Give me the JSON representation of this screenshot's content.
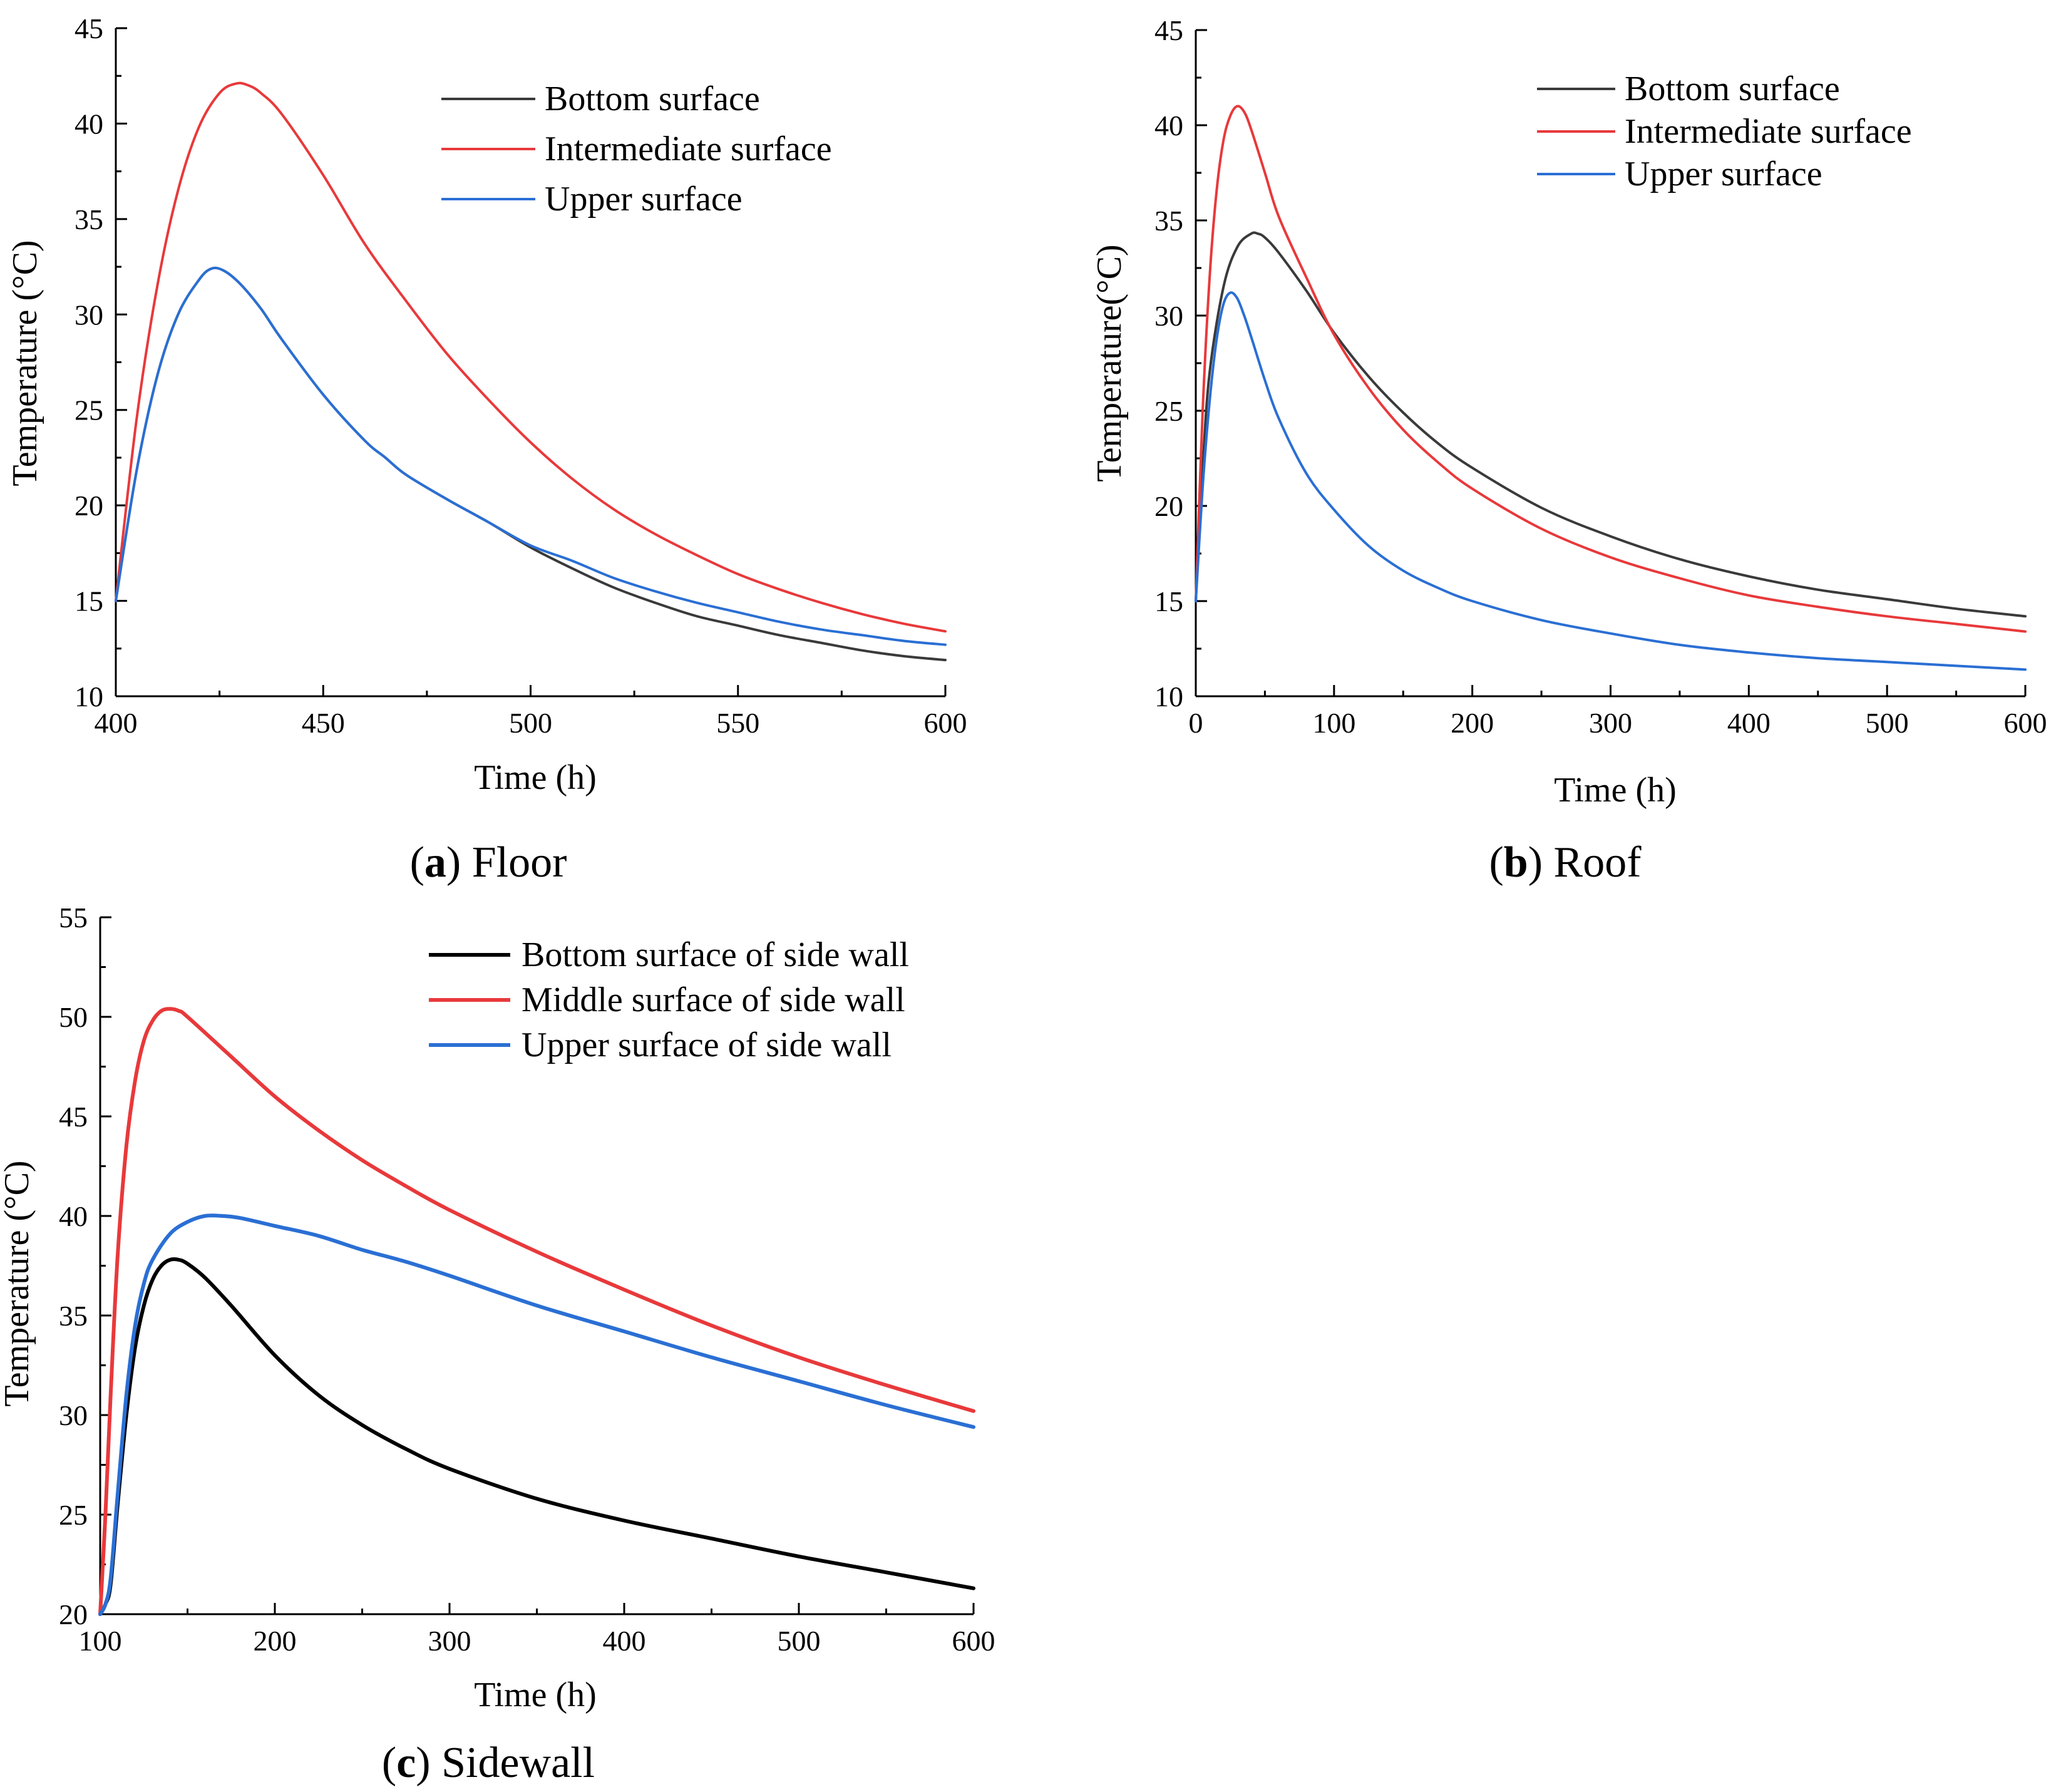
{
  "captions": [
    {
      "letter": "a",
      "text": " Floor"
    },
    {
      "letter": "b",
      "text": " Roof"
    },
    {
      "letter": "c",
      "text": " Sidewall"
    }
  ],
  "colors": {
    "black": "#3a3a3a",
    "black_strong": "#000000",
    "red": "#e8393b",
    "blue": "#2a6fd4"
  },
  "chart_data": [
    {
      "type": "line",
      "title": "",
      "xlabel": "Time (h)",
      "ylabel": "Temperature (°C)",
      "xlim": [
        400,
        600
      ],
      "ylim": [
        10,
        45
      ],
      "xticks": [
        400,
        450,
        500,
        550,
        600
      ],
      "yticks": [
        10,
        15,
        20,
        25,
        30,
        35,
        40,
        45
      ],
      "grid": false,
      "legend": "top-right",
      "series": [
        {
          "name": "Bottom surface",
          "color": "#3a3a3a",
          "x": [
            400,
            405,
            410,
            415,
            420,
            423,
            426,
            430,
            435,
            440,
            450,
            460,
            465,
            470,
            480,
            490,
            500,
            510,
            520,
            530,
            540,
            550,
            560,
            570,
            580,
            590,
            600
          ],
          "y": [
            15.0,
            21.8,
            26.8,
            30.0,
            31.8,
            32.4,
            32.3,
            31.6,
            30.3,
            28.7,
            25.8,
            23.4,
            22.5,
            21.6,
            20.3,
            19.1,
            17.8,
            16.7,
            15.7,
            14.9,
            14.2,
            13.7,
            13.2,
            12.8,
            12.4,
            12.1,
            11.9
          ]
        },
        {
          "name": "Intermediate surface",
          "color": "#e8393b",
          "x": [
            400,
            405,
            410,
            415,
            420,
            425,
            429,
            432,
            435,
            440,
            450,
            460,
            470,
            480,
            490,
            500,
            510,
            520,
            530,
            540,
            550,
            560,
            570,
            580,
            590,
            600
          ],
          "y": [
            15.0,
            24.5,
            31.5,
            36.5,
            39.8,
            41.6,
            42.1,
            42.0,
            41.6,
            40.5,
            37.3,
            33.7,
            30.7,
            27.9,
            25.5,
            23.3,
            21.4,
            19.8,
            18.5,
            17.4,
            16.4,
            15.6,
            14.9,
            14.3,
            13.8,
            13.4
          ]
        },
        {
          "name": "Upper surface",
          "color": "#2a6fd4",
          "x": [
            400,
            405,
            410,
            415,
            420,
            423,
            426,
            430,
            435,
            440,
            450,
            460,
            465,
            470,
            480,
            490,
            500,
            510,
            520,
            530,
            540,
            550,
            560,
            570,
            580,
            590,
            600
          ],
          "y": [
            15.0,
            21.8,
            26.8,
            30.0,
            31.8,
            32.4,
            32.3,
            31.6,
            30.3,
            28.7,
            25.8,
            23.4,
            22.5,
            21.6,
            20.3,
            19.1,
            17.9,
            17.1,
            16.2,
            15.5,
            14.9,
            14.4,
            13.9,
            13.5,
            13.2,
            12.9,
            12.7
          ]
        }
      ]
    },
    {
      "type": "line",
      "title": "",
      "xlabel": "Time (h)",
      "ylabel": "Temperature(°C)",
      "xlim": [
        0,
        600
      ],
      "ylim": [
        10,
        45
      ],
      "xticks": [
        0,
        100,
        200,
        300,
        400,
        500,
        600
      ],
      "yticks": [
        10,
        15,
        20,
        25,
        30,
        35,
        40,
        45
      ],
      "grid": false,
      "legend": "top-right",
      "series": [
        {
          "name": "Bottom surface",
          "color": "#3a3a3a",
          "x": [
            0,
            5,
            10,
            20,
            30,
            40,
            45,
            50,
            60,
            80,
            100,
            125,
            150,
            175,
            200,
            250,
            300,
            350,
            400,
            450,
            500,
            550,
            600
          ],
          "y": [
            15.0,
            22.0,
            27.0,
            31.5,
            33.6,
            34.3,
            34.3,
            34.1,
            33.3,
            31.3,
            29.1,
            26.8,
            24.9,
            23.3,
            22.0,
            19.9,
            18.4,
            17.2,
            16.3,
            15.6,
            15.1,
            14.6,
            14.2
          ]
        },
        {
          "name": "Intermediate surface",
          "color": "#e8393b",
          "x": [
            0,
            5,
            10,
            15,
            20,
            25,
            30,
            35,
            40,
            50,
            60,
            80,
            100,
            125,
            150,
            175,
            200,
            250,
            300,
            350,
            400,
            450,
            500,
            550,
            600
          ],
          "y": [
            15.0,
            25.0,
            32.0,
            36.5,
            39.2,
            40.5,
            41.0,
            40.7,
            39.8,
            37.5,
            35.2,
            32.0,
            29.0,
            26.2,
            24.0,
            22.3,
            20.9,
            18.8,
            17.3,
            16.2,
            15.3,
            14.7,
            14.2,
            13.8,
            13.4
          ]
        },
        {
          "name": "Upper surface",
          "color": "#2a6fd4",
          "x": [
            0,
            5,
            10,
            15,
            20,
            25,
            30,
            35,
            40,
            50,
            60,
            80,
            100,
            125,
            150,
            175,
            200,
            250,
            300,
            350,
            400,
            450,
            500,
            550,
            600
          ],
          "y": [
            15.0,
            21.0,
            25.5,
            28.7,
            30.6,
            31.2,
            30.9,
            30.0,
            28.9,
            26.6,
            24.6,
            21.7,
            19.8,
            17.9,
            16.6,
            15.7,
            15.0,
            14.0,
            13.3,
            12.7,
            12.3,
            12.0,
            11.8,
            11.6,
            11.4
          ]
        }
      ]
    },
    {
      "type": "line",
      "title": "",
      "xlabel": "Time (h)",
      "ylabel": "Temperature (°C)",
      "xlim": [
        100,
        600
      ],
      "ylim": [
        20,
        55
      ],
      "xticks": [
        100,
        200,
        300,
        400,
        500,
        600
      ],
      "yticks": [
        20,
        25,
        30,
        35,
        40,
        45,
        50,
        55
      ],
      "grid": false,
      "legend": "top-right",
      "series": [
        {
          "name": "Bottom surface of side wall",
          "color": "#000000",
          "x": [
            100,
            103,
            106,
            110,
            115,
            120,
            125,
            130,
            135,
            140,
            145,
            150,
            160,
            175,
            200,
            225,
            250,
            275,
            300,
            350,
            400,
            450,
            500,
            550,
            600
          ],
          "y": [
            20.0,
            20.5,
            21.5,
            25.5,
            30.0,
            33.4,
            35.5,
            36.8,
            37.5,
            37.8,
            37.8,
            37.6,
            36.9,
            35.5,
            33.0,
            31.0,
            29.5,
            28.3,
            27.3,
            25.8,
            24.7,
            23.8,
            22.9,
            22.1,
            21.3
          ]
        },
        {
          "name": "Middle surface of side wall",
          "color": "#e8393b",
          "x": [
            100,
            103,
            106,
            110,
            115,
            120,
            125,
            130,
            135,
            140,
            145,
            150,
            175,
            200,
            225,
            250,
            275,
            300,
            350,
            400,
            450,
            500,
            550,
            600
          ],
          "y": [
            20.0,
            25.0,
            31.0,
            38.0,
            43.5,
            46.8,
            48.8,
            49.8,
            50.3,
            50.4,
            50.3,
            50.0,
            48.0,
            46.0,
            44.3,
            42.8,
            41.5,
            40.3,
            38.2,
            36.3,
            34.5,
            32.9,
            31.5,
            30.2
          ]
        },
        {
          "name": "Upper surface of side wall",
          "color": "#2a6fd4",
          "x": [
            100,
            103,
            106,
            110,
            115,
            120,
            125,
            130,
            140,
            150,
            160,
            170,
            180,
            200,
            225,
            250,
            275,
            300,
            350,
            400,
            450,
            500,
            550,
            600
          ],
          "y": [
            20.0,
            20.5,
            21.8,
            26.0,
            31.0,
            34.5,
            36.6,
            37.8,
            39.1,
            39.7,
            40.0,
            40.0,
            39.9,
            39.5,
            39.0,
            38.3,
            37.7,
            37.0,
            35.5,
            34.2,
            32.9,
            31.7,
            30.5,
            29.4
          ]
        }
      ]
    }
  ]
}
